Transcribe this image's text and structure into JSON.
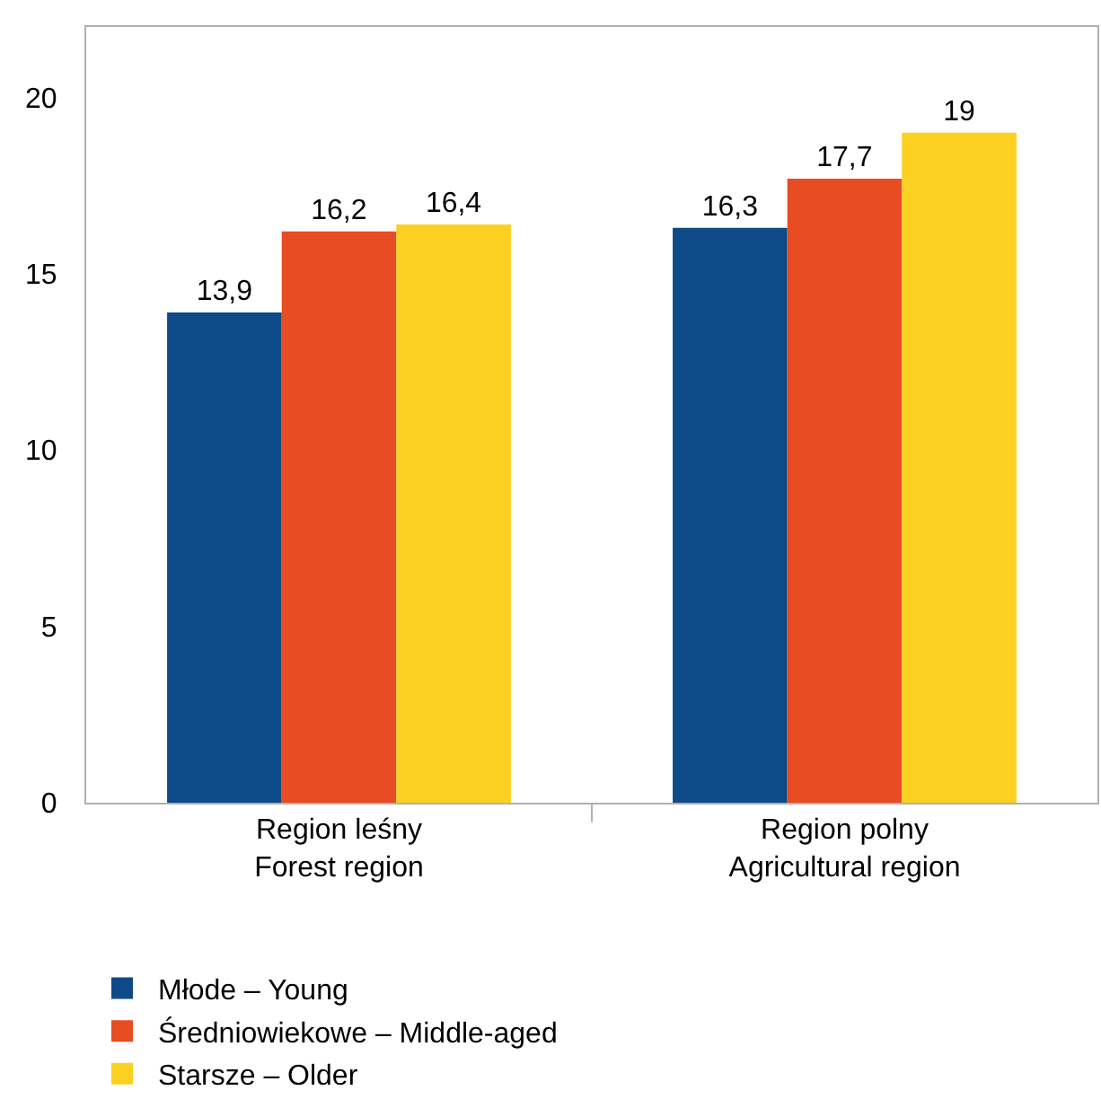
{
  "chart_data": {
    "type": "bar",
    "categories": [
      "Region leśny\nForest region",
      "Region polny\nAgricultural region"
    ],
    "series": [
      {
        "name": "Młode – Young",
        "color": "#0e4a87",
        "values": [
          13.9,
          16.3
        ],
        "value_labels": [
          "13,9",
          "16,3"
        ]
      },
      {
        "name": "Średniowiekowe – Middle-aged",
        "color": "#e84c22",
        "values": [
          16.2,
          17.7
        ],
        "value_labels": [
          "16,2",
          "17,7"
        ]
      },
      {
        "name": "Starsze – Older",
        "color": "#fcd021",
        "values": [
          16.4,
          19
        ],
        "value_labels": [
          "16,4",
          "19"
        ]
      }
    ],
    "ylim": [
      0,
      22
    ],
    "yticks": [
      0,
      5,
      10,
      15,
      20
    ],
    "grid": false,
    "legend": "bottom left"
  }
}
